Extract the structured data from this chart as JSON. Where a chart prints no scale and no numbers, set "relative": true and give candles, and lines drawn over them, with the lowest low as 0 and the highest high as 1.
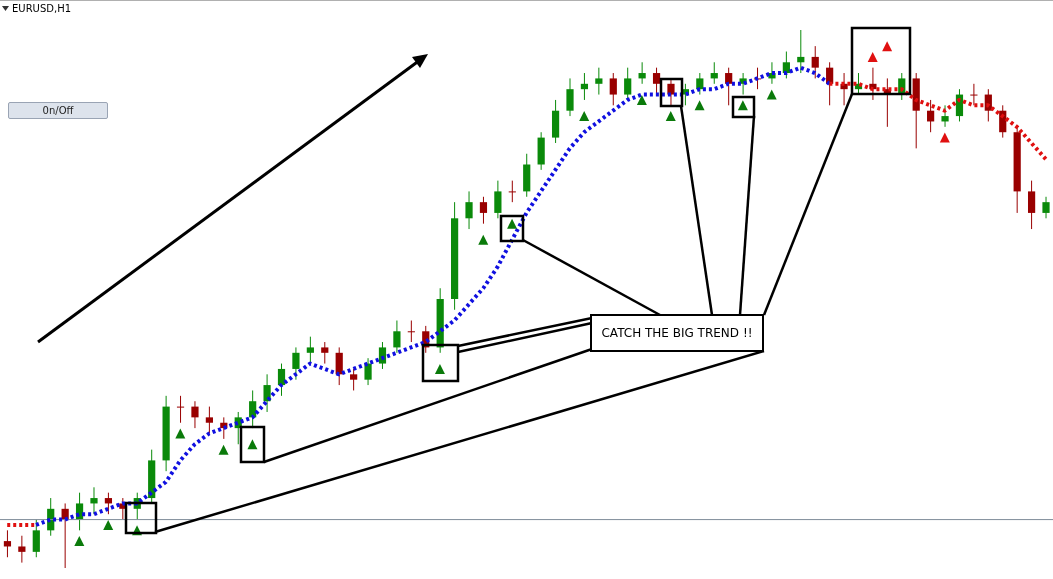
{
  "chart_data": {
    "type": "candlestick",
    "title": "EURUSD,H1",
    "relative": true,
    "annotations": [
      "0n/Off",
      "CATCH THE BIG TREND !!"
    ],
    "categories": [
      null,
      null,
      null,
      null,
      null,
      null,
      null,
      null,
      null,
      null,
      null,
      null,
      null,
      null,
      null,
      null,
      null,
      null,
      null,
      null,
      null,
      null,
      null,
      null,
      null,
      null,
      null,
      null,
      null,
      null,
      null,
      null,
      null,
      null,
      null,
      null,
      null,
      null,
      null,
      null,
      null,
      null,
      null,
      null,
      null,
      null,
      null,
      null,
      null,
      null,
      null,
      null,
      null,
      null,
      null,
      null,
      null,
      null,
      null,
      null,
      null,
      null,
      null,
      null,
      null,
      null,
      null,
      null,
      null,
      null,
      null,
      null,
      null
    ],
    "ohlc": [
      [
        0.05,
        0.07,
        0.02,
        0.04
      ],
      [
        0.04,
        0.06,
        0.01,
        0.03
      ],
      [
        0.03,
        0.09,
        0.02,
        0.07
      ],
      [
        0.07,
        0.13,
        0.06,
        0.11
      ],
      [
        0.11,
        0.12,
        0,
        0.09
      ],
      [
        0.09,
        0.14,
        0.07,
        0.12
      ],
      [
        0.12,
        0.15,
        0.1,
        0.13
      ],
      [
        0.13,
        0.14,
        0.1,
        0.12
      ],
      [
        0.12,
        0.13,
        0.09,
        0.11
      ],
      [
        0.11,
        0.14,
        0.09,
        0.13
      ],
      [
        0.13,
        0.22,
        0.12,
        0.2
      ],
      [
        0.2,
        0.32,
        0.18,
        0.3
      ],
      [
        0.3,
        0.32,
        0.27,
        0.3
      ],
      [
        0.3,
        0.31,
        0.26,
        0.28
      ],
      [
        0.28,
        0.3,
        0.25,
        0.27
      ],
      [
        0.27,
        0.28,
        0.24,
        0.26
      ],
      [
        0.26,
        0.29,
        0.23,
        0.28
      ],
      [
        0.28,
        0.33,
        0.26,
        0.31
      ],
      [
        0.31,
        0.36,
        0.29,
        0.34
      ],
      [
        0.34,
        0.38,
        0.32,
        0.37
      ],
      [
        0.37,
        0.41,
        0.35,
        0.4
      ],
      [
        0.4,
        0.43,
        0.38,
        0.41
      ],
      [
        0.41,
        0.42,
        0.38,
        0.4
      ],
      [
        0.4,
        0.41,
        0.34,
        0.36
      ],
      [
        0.36,
        0.37,
        0.33,
        0.35
      ],
      [
        0.35,
        0.39,
        0.34,
        0.38
      ],
      [
        0.38,
        0.42,
        0.37,
        0.41
      ],
      [
        0.41,
        0.46,
        0.4,
        0.44
      ],
      [
        0.44,
        0.46,
        0.42,
        0.44
      ],
      [
        0.44,
        0.45,
        0.4,
        0.41
      ],
      [
        0.41,
        0.52,
        0.4,
        0.5
      ],
      [
        0.5,
        0.68,
        0.48,
        0.65
      ],
      [
        0.65,
        0.7,
        0.63,
        0.68
      ],
      [
        0.68,
        0.69,
        0.64,
        0.66
      ],
      [
        0.66,
        0.72,
        0.65,
        0.7
      ],
      [
        0.7,
        0.72,
        0.68,
        0.7
      ],
      [
        0.7,
        0.77,
        0.69,
        0.75
      ],
      [
        0.75,
        0.81,
        0.74,
        0.8
      ],
      [
        0.8,
        0.87,
        0.79,
        0.85
      ],
      [
        0.85,
        0.91,
        0.84,
        0.89
      ],
      [
        0.89,
        0.92,
        0.87,
        0.9
      ],
      [
        0.9,
        0.93,
        0.88,
        0.91
      ],
      [
        0.91,
        0.92,
        0.86,
        0.88
      ],
      [
        0.88,
        0.93,
        0.87,
        0.91
      ],
      [
        0.91,
        0.94,
        0.9,
        0.92
      ],
      [
        0.92,
        0.93,
        0.88,
        0.9
      ],
      [
        0.9,
        0.91,
        0.86,
        0.88
      ],
      [
        0.88,
        0.9,
        0.86,
        0.89
      ],
      [
        0.89,
        0.92,
        0.88,
        0.91
      ],
      [
        0.91,
        0.94,
        0.9,
        0.92
      ],
      [
        0.92,
        0.93,
        0.86,
        0.9
      ],
      [
        0.9,
        0.92,
        0.88,
        0.91
      ],
      [
        0.91,
        0.93,
        0.89,
        0.91
      ],
      [
        0.91,
        0.94,
        0.9,
        0.92
      ],
      [
        0.92,
        0.96,
        0.91,
        0.94
      ],
      [
        0.94,
        1,
        0.92,
        0.95
      ],
      [
        0.95,
        0.97,
        0.91,
        0.93
      ],
      [
        0.93,
        0.94,
        0.86,
        0.9
      ],
      [
        0.9,
        0.92,
        0.86,
        0.89
      ],
      [
        0.89,
        0.92,
        0.88,
        0.9
      ],
      [
        0.9,
        0.93,
        0.87,
        0.89
      ],
      [
        0.89,
        0.91,
        0.82,
        0.88
      ],
      [
        0.88,
        0.92,
        0.87,
        0.91
      ],
      [
        0.91,
        0.92,
        0.78,
        0.85
      ],
      [
        0.85,
        0.87,
        0.81,
        0.83
      ],
      [
        0.83,
        0.86,
        0.82,
        0.84
      ],
      [
        0.84,
        0.89,
        0.83,
        0.88
      ],
      [
        0.88,
        0.9,
        0.86,
        0.88
      ],
      [
        0.88,
        0.89,
        0.83,
        0.85
      ],
      [
        0.85,
        0.86,
        0.8,
        0.81
      ],
      [
        0.81,
        0.82,
        0.66,
        0.7
      ],
      [
        0.7,
        0.72,
        0.63,
        0.66
      ],
      [
        0.66,
        0.69,
        0.65,
        0.68
      ]
    ],
    "colors": [
      "#990000",
      "#990000",
      "#0a8a0a",
      "#0a8a0a",
      "#990000",
      "#0a8a0a",
      "#0a8a0a",
      "#990000",
      "#990000",
      "#0a8a0a",
      "#0a8a0a",
      "#0a8a0a",
      "#990000",
      "#990000",
      "#990000",
      "#990000",
      "#0a8a0a",
      "#0a8a0a",
      "#0a8a0a",
      "#0a8a0a",
      "#0a8a0a",
      "#0a8a0a",
      "#990000",
      "#990000",
      "#990000",
      "#0a8a0a",
      "#0a8a0a",
      "#0a8a0a",
      "#990000",
      "#990000",
      "#0a8a0a",
      "#0a8a0a",
      "#0a8a0a",
      "#990000",
      "#0a8a0a",
      "#990000",
      "#0a8a0a",
      "#0a8a0a",
      "#0a8a0a",
      "#0a8a0a",
      "#0a8a0a",
      "#0a8a0a",
      "#990000",
      "#0a8a0a",
      "#0a8a0a",
      "#990000",
      "#990000",
      "#0a8a0a",
      "#0a8a0a",
      "#0a8a0a",
      "#990000",
      "#0a8a0a",
      "#990000",
      "#0a8a0a",
      "#0a8a0a",
      "#0a8a0a",
      "#990000",
      "#990000",
      "#990000",
      "#0a8a0a",
      "#990000",
      "#990000",
      "#0a8a0a",
      "#990000",
      "#990000",
      "#0a8a0a",
      "#0a8a0a",
      "#990000",
      "#990000",
      "#990000",
      "#990000",
      "#990000",
      "#0a8a0a"
    ],
    "series": [
      {
        "type": "line",
        "color": "#1010e0",
        "line_style": "dotted",
        "values": [
          null,
          null,
          0.08,
          0.09,
          0.09,
          0.1,
          0.1,
          0.11,
          0.12,
          0.12,
          0.14,
          0.16,
          0.2,
          0.23,
          0.25,
          0.26,
          0.27,
          0.28,
          0.31,
          0.34,
          0.36,
          0.38,
          0.37,
          0.36,
          0.37,
          0.38,
          0.39,
          0.4,
          0.41,
          0.42,
          0.44,
          0.46,
          0.49,
          0.52,
          0.56,
          0.61,
          0.66,
          0.7,
          0.74,
          0.78,
          0.81,
          0.83,
          0.85,
          0.87,
          0.88,
          0.88,
          0.88,
          0.88,
          0.89,
          0.89,
          0.9,
          0.9,
          0.91,
          0.92,
          0.92,
          0.93,
          0.92,
          0.9,
          null,
          null,
          null,
          null,
          null,
          null,
          null,
          null,
          null,
          null,
          null,
          null,
          null,
          null,
          null
        ]
      },
      {
        "type": "line",
        "color": "#e01010",
        "line_style": "dotted",
        "values": [
          0.08,
          0.08,
          0.08,
          null,
          null,
          null,
          null,
          null,
          null,
          null,
          null,
          null,
          null,
          null,
          null,
          null,
          null,
          null,
          null,
          null,
          null,
          null,
          null,
          null,
          null,
          null,
          null,
          null,
          null,
          null,
          null,
          null,
          null,
          null,
          null,
          null,
          null,
          null,
          null,
          null,
          null,
          null,
          null,
          null,
          null,
          null,
          null,
          null,
          null,
          null,
          null,
          null,
          null,
          null,
          null,
          null,
          null,
          0.9,
          0.9,
          0.9,
          0.89,
          0.89,
          0.89,
          0.87,
          0.86,
          0.85,
          0.87,
          0.86,
          0.86,
          0.84,
          0.82,
          0.79,
          0.76
        ]
      },
      {
        "type": "scatter",
        "color": "#0a7a0a",
        "marker": "triangle",
        "values": [
          null,
          null,
          null,
          null,
          null,
          0.05,
          null,
          0.08,
          null,
          0.07,
          null,
          null,
          0.25,
          null,
          null,
          0.22,
          null,
          0.23,
          null,
          null,
          null,
          null,
          null,
          null,
          null,
          null,
          null,
          null,
          null,
          null,
          0.37,
          null,
          null,
          0.61,
          null,
          0.64,
          null,
          null,
          null,
          null,
          0.84,
          null,
          null,
          null,
          0.87,
          null,
          0.84,
          null,
          0.86,
          null,
          null,
          0.86,
          null,
          0.88,
          null,
          null,
          null,
          null,
          null,
          null,
          null,
          null,
          null,
          null,
          null,
          null,
          null,
          null,
          null,
          null,
          null,
          null,
          null
        ]
      },
      {
        "type": "scatter",
        "color": "#e01010",
        "marker": "triangle",
        "values": [
          null,
          null,
          null,
          null,
          null,
          null,
          null,
          null,
          null,
          null,
          null,
          null,
          null,
          null,
          null,
          null,
          null,
          null,
          null,
          null,
          null,
          null,
          null,
          null,
          null,
          null,
          null,
          null,
          null,
          null,
          null,
          null,
          null,
          null,
          null,
          null,
          null,
          null,
          null,
          null,
          null,
          null,
          null,
          null,
          null,
          null,
          null,
          null,
          null,
          null,
          null,
          null,
          null,
          null,
          null,
          null,
          null,
          null,
          null,
          null,
          0.95,
          0.97,
          null,
          null,
          null,
          0.8,
          null,
          null,
          null,
          null,
          null,
          null,
          null
        ]
      }
    ],
    "ref_lines": [
      {
        "axis": "y",
        "value": 0.09,
        "color": "#7f8c9a"
      }
    ]
  }
}
